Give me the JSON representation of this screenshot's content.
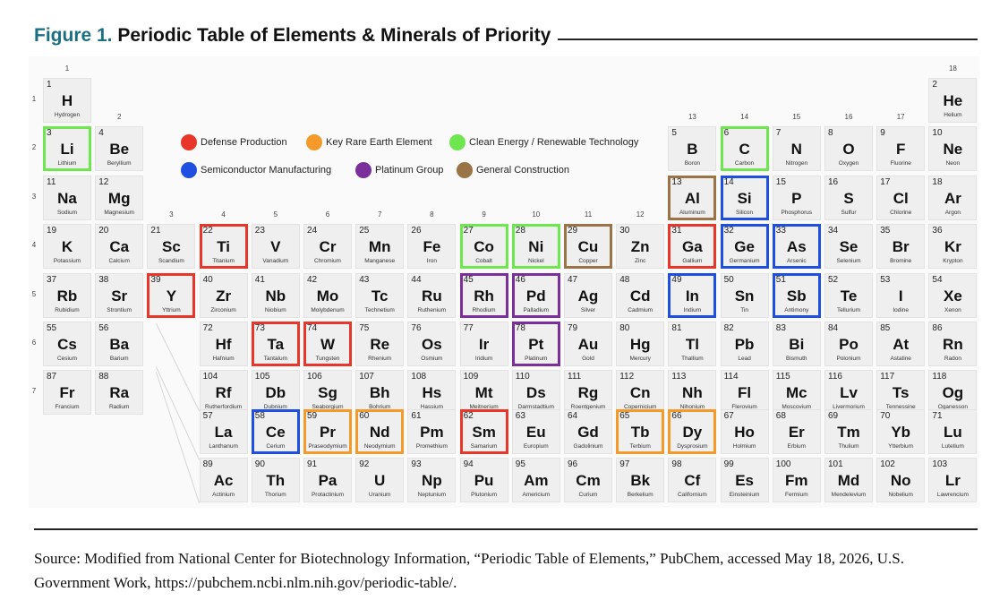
{
  "title": {
    "number": "Figure 1.",
    "text": " Periodic Table of Elements & Minerals of Priority"
  },
  "source": "Source: Modified from National Center for Biotechnology Information, “Periodic Table of Elements,” PubChem, accessed May 18, 2026, U.S. Government Work, https://pubchem.ncbi.nlm.nih.gov/periodic-table/.",
  "groups": [
    "1",
    "2",
    "3",
    "4",
    "5",
    "6",
    "7",
    "8",
    "9",
    "10",
    "11",
    "12",
    "13",
    "14",
    "15",
    "16",
    "17",
    "18"
  ],
  "periods": [
    "1",
    "2",
    "3",
    "4",
    "5",
    "6",
    "7"
  ],
  "legend": [
    {
      "key": "def",
      "label": "Defense Production",
      "color": "#e8372a"
    },
    {
      "key": "ree",
      "label": "Key Rare Earth Element",
      "color": "#f39a2a"
    },
    {
      "key": "clean",
      "label": "Clean Energy / Renewable Technology",
      "color": "#6ee64f"
    },
    {
      "key": "semi",
      "label": "Semiconductor Manufacturing",
      "color": "#1f4fe0"
    },
    {
      "key": "plat",
      "label": "Platinum Group",
      "color": "#7a2f9a"
    },
    {
      "key": "gen",
      "label": "General Construction",
      "color": "#9a7346"
    }
  ],
  "elements": [
    {
      "z": 1,
      "s": "H",
      "n": "Hydrogen",
      "g": 1,
      "p": 1
    },
    {
      "z": 2,
      "s": "He",
      "n": "Helium",
      "g": 18,
      "p": 1
    },
    {
      "z": 3,
      "s": "Li",
      "n": "Lithium",
      "g": 1,
      "p": 2,
      "hl": "clean"
    },
    {
      "z": 4,
      "s": "Be",
      "n": "Beryllium",
      "g": 2,
      "p": 2
    },
    {
      "z": 5,
      "s": "B",
      "n": "Boron",
      "g": 13,
      "p": 2
    },
    {
      "z": 6,
      "s": "C",
      "n": "Carbon",
      "g": 14,
      "p": 2,
      "hl": "clean"
    },
    {
      "z": 7,
      "s": "N",
      "n": "Nitrogen",
      "g": 15,
      "p": 2
    },
    {
      "z": 8,
      "s": "O",
      "n": "Oxygen",
      "g": 16,
      "p": 2
    },
    {
      "z": 9,
      "s": "F",
      "n": "Fluorine",
      "g": 17,
      "p": 2
    },
    {
      "z": 10,
      "s": "Ne",
      "n": "Neon",
      "g": 18,
      "p": 2
    },
    {
      "z": 11,
      "s": "Na",
      "n": "Sodium",
      "g": 1,
      "p": 3
    },
    {
      "z": 12,
      "s": "Mg",
      "n": "Magnesium",
      "g": 2,
      "p": 3
    },
    {
      "z": 13,
      "s": "Al",
      "n": "Aluminum",
      "g": 13,
      "p": 3,
      "hl": "gen"
    },
    {
      "z": 14,
      "s": "Si",
      "n": "Silicon",
      "g": 14,
      "p": 3,
      "hl": "semi"
    },
    {
      "z": 15,
      "s": "P",
      "n": "Phosphorus",
      "g": 15,
      "p": 3
    },
    {
      "z": 16,
      "s": "S",
      "n": "Sulfur",
      "g": 16,
      "p": 3
    },
    {
      "z": 17,
      "s": "Cl",
      "n": "Chlorine",
      "g": 17,
      "p": 3
    },
    {
      "z": 18,
      "s": "Ar",
      "n": "Argon",
      "g": 18,
      "p": 3
    },
    {
      "z": 19,
      "s": "K",
      "n": "Potassium",
      "g": 1,
      "p": 4
    },
    {
      "z": 20,
      "s": "Ca",
      "n": "Calcium",
      "g": 2,
      "p": 4
    },
    {
      "z": 21,
      "s": "Sc",
      "n": "Scandium",
      "g": 3,
      "p": 4
    },
    {
      "z": 22,
      "s": "Ti",
      "n": "Titanium",
      "g": 4,
      "p": 4,
      "hl": "def"
    },
    {
      "z": 23,
      "s": "V",
      "n": "Vanadium",
      "g": 5,
      "p": 4
    },
    {
      "z": 24,
      "s": "Cr",
      "n": "Chromium",
      "g": 6,
      "p": 4
    },
    {
      "z": 25,
      "s": "Mn",
      "n": "Manganese",
      "g": 7,
      "p": 4
    },
    {
      "z": 26,
      "s": "Fe",
      "n": "Iron",
      "g": 8,
      "p": 4
    },
    {
      "z": 27,
      "s": "Co",
      "n": "Cobalt",
      "g": 9,
      "p": 4,
      "hl": "clean"
    },
    {
      "z": 28,
      "s": "Ni",
      "n": "Nickel",
      "g": 10,
      "p": 4,
      "hl": "clean"
    },
    {
      "z": 29,
      "s": "Cu",
      "n": "Copper",
      "g": 11,
      "p": 4,
      "hl": "gen"
    },
    {
      "z": 30,
      "s": "Zn",
      "n": "Zinc",
      "g": 12,
      "p": 4
    },
    {
      "z": 31,
      "s": "Ga",
      "n": "Gallium",
      "g": 13,
      "p": 4,
      "hl": "def"
    },
    {
      "z": 32,
      "s": "Ge",
      "n": "Germanium",
      "g": 14,
      "p": 4,
      "hl": "semi"
    },
    {
      "z": 33,
      "s": "As",
      "n": "Arsenic",
      "g": 15,
      "p": 4,
      "hl": "semi"
    },
    {
      "z": 34,
      "s": "Se",
      "n": "Selenium",
      "g": 16,
      "p": 4
    },
    {
      "z": 35,
      "s": "Br",
      "n": "Bromine",
      "g": 17,
      "p": 4
    },
    {
      "z": 36,
      "s": "Kr",
      "n": "Krypton",
      "g": 18,
      "p": 4
    },
    {
      "z": 37,
      "s": "Rb",
      "n": "Rubidium",
      "g": 1,
      "p": 5
    },
    {
      "z": 38,
      "s": "Sr",
      "n": "Strontium",
      "g": 2,
      "p": 5
    },
    {
      "z": 39,
      "s": "Y",
      "n": "Yttrium",
      "g": 3,
      "p": 5,
      "hl": "def"
    },
    {
      "z": 40,
      "s": "Zr",
      "n": "Zirconium",
      "g": 4,
      "p": 5
    },
    {
      "z": 41,
      "s": "Nb",
      "n": "Niobium",
      "g": 5,
      "p": 5
    },
    {
      "z": 42,
      "s": "Mo",
      "n": "Molybdenum",
      "g": 6,
      "p": 5
    },
    {
      "z": 43,
      "s": "Tc",
      "n": "Technetium",
      "g": 7,
      "p": 5
    },
    {
      "z": 44,
      "s": "Ru",
      "n": "Ruthenium",
      "g": 8,
      "p": 5
    },
    {
      "z": 45,
      "s": "Rh",
      "n": "Rhodium",
      "g": 9,
      "p": 5,
      "hl": "plat"
    },
    {
      "z": 46,
      "s": "Pd",
      "n": "Palladium",
      "g": 10,
      "p": 5,
      "hl": "plat"
    },
    {
      "z": 47,
      "s": "Ag",
      "n": "Silver",
      "g": 11,
      "p": 5
    },
    {
      "z": 48,
      "s": "Cd",
      "n": "Cadmium",
      "g": 12,
      "p": 5
    },
    {
      "z": 49,
      "s": "In",
      "n": "Indium",
      "g": 13,
      "p": 5,
      "hl": "semi"
    },
    {
      "z": 50,
      "s": "Sn",
      "n": "Tin",
      "g": 14,
      "p": 5
    },
    {
      "z": 51,
      "s": "Sb",
      "n": "Antimony",
      "g": 15,
      "p": 5,
      "hl": "semi"
    },
    {
      "z": 52,
      "s": "Te",
      "n": "Tellurium",
      "g": 16,
      "p": 5
    },
    {
      "z": 53,
      "s": "I",
      "n": "Iodine",
      "g": 17,
      "p": 5
    },
    {
      "z": 54,
      "s": "Xe",
      "n": "Xenon",
      "g": 18,
      "p": 5
    },
    {
      "z": 55,
      "s": "Cs",
      "n": "Cesium",
      "g": 1,
      "p": 6
    },
    {
      "z": 56,
      "s": "Ba",
      "n": "Barium",
      "g": 2,
      "p": 6
    },
    {
      "z": 72,
      "s": "Hf",
      "n": "Hafnium",
      "g": 4,
      "p": 6
    },
    {
      "z": 73,
      "s": "Ta",
      "n": "Tantalum",
      "g": 5,
      "p": 6,
      "hl": "def"
    },
    {
      "z": 74,
      "s": "W",
      "n": "Tungsten",
      "g": 6,
      "p": 6,
      "hl": "def"
    },
    {
      "z": 75,
      "s": "Re",
      "n": "Rhenium",
      "g": 7,
      "p": 6
    },
    {
      "z": 76,
      "s": "Os",
      "n": "Osmium",
      "g": 8,
      "p": 6
    },
    {
      "z": 77,
      "s": "Ir",
      "n": "Iridium",
      "g": 9,
      "p": 6
    },
    {
      "z": 78,
      "s": "Pt",
      "n": "Platinum",
      "g": 10,
      "p": 6,
      "hl": "plat"
    },
    {
      "z": 79,
      "s": "Au",
      "n": "Gold",
      "g": 11,
      "p": 6
    },
    {
      "z": 80,
      "s": "Hg",
      "n": "Mercury",
      "g": 12,
      "p": 6
    },
    {
      "z": 81,
      "s": "Tl",
      "n": "Thallium",
      "g": 13,
      "p": 6
    },
    {
      "z": 82,
      "s": "Pb",
      "n": "Lead",
      "g": 14,
      "p": 6
    },
    {
      "z": 83,
      "s": "Bi",
      "n": "Bismuth",
      "g": 15,
      "p": 6
    },
    {
      "z": 84,
      "s": "Po",
      "n": "Polonium",
      "g": 16,
      "p": 6
    },
    {
      "z": 85,
      "s": "At",
      "n": "Astatine",
      "g": 17,
      "p": 6
    },
    {
      "z": 86,
      "s": "Rn",
      "n": "Radon",
      "g": 18,
      "p": 6
    },
    {
      "z": 87,
      "s": "Fr",
      "n": "Francium",
      "g": 1,
      "p": 7
    },
    {
      "z": 88,
      "s": "Ra",
      "n": "Radium",
      "g": 2,
      "p": 7
    },
    {
      "z": 104,
      "s": "Rf",
      "n": "Rutherfordium",
      "g": 4,
      "p": 7
    },
    {
      "z": 105,
      "s": "Db",
      "n": "Dubnium",
      "g": 5,
      "p": 7
    },
    {
      "z": 106,
      "s": "Sg",
      "n": "Seaborgium",
      "g": 6,
      "p": 7
    },
    {
      "z": 107,
      "s": "Bh",
      "n": "Bohrium",
      "g": 7,
      "p": 7
    },
    {
      "z": 108,
      "s": "Hs",
      "n": "Hassium",
      "g": 8,
      "p": 7
    },
    {
      "z": 109,
      "s": "Mt",
      "n": "Meitnerium",
      "g": 9,
      "p": 7
    },
    {
      "z": 110,
      "s": "Ds",
      "n": "Darmstadtium",
      "g": 10,
      "p": 7
    },
    {
      "z": 111,
      "s": "Rg",
      "n": "Roentgenium",
      "g": 11,
      "p": 7
    },
    {
      "z": 112,
      "s": "Cn",
      "n": "Copernicium",
      "g": 12,
      "p": 7
    },
    {
      "z": 113,
      "s": "Nh",
      "n": "Nihonium",
      "g": 13,
      "p": 7
    },
    {
      "z": 114,
      "s": "Fl",
      "n": "Flerovium",
      "g": 14,
      "p": 7
    },
    {
      "z": 115,
      "s": "Mc",
      "n": "Moscovium",
      "g": 15,
      "p": 7
    },
    {
      "z": 116,
      "s": "Lv",
      "n": "Livermorium",
      "g": 16,
      "p": 7
    },
    {
      "z": 117,
      "s": "Ts",
      "n": "Tennessine",
      "g": 17,
      "p": 7
    },
    {
      "z": 118,
      "s": "Og",
      "n": "Oganesson",
      "g": 18,
      "p": 7
    },
    {
      "z": 57,
      "s": "La",
      "n": "Lanthanum",
      "g": 4,
      "p": 8
    },
    {
      "z": 58,
      "s": "Ce",
      "n": "Cerium",
      "g": 5,
      "p": 8,
      "hl": "semi"
    },
    {
      "z": 59,
      "s": "Pr",
      "n": "Praseodymium",
      "g": 6,
      "p": 8,
      "hl": "ree"
    },
    {
      "z": 60,
      "s": "Nd",
      "n": "Neodymium",
      "g": 7,
      "p": 8,
      "hl": "ree"
    },
    {
      "z": 61,
      "s": "Pm",
      "n": "Promethium",
      "g": 8,
      "p": 8
    },
    {
      "z": 62,
      "s": "Sm",
      "n": "Samarium",
      "g": 9,
      "p": 8,
      "hl": "def"
    },
    {
      "z": 63,
      "s": "Eu",
      "n": "Europium",
      "g": 10,
      "p": 8
    },
    {
      "z": 64,
      "s": "Gd",
      "n": "Gadolinium",
      "g": 11,
      "p": 8
    },
    {
      "z": 65,
      "s": "Tb",
      "n": "Terbium",
      "g": 12,
      "p": 8,
      "hl": "ree"
    },
    {
      "z": 66,
      "s": "Dy",
      "n": "Dysprosium",
      "g": 13,
      "p": 8,
      "hl": "ree"
    },
    {
      "z": 67,
      "s": "Ho",
      "n": "Holmium",
      "g": 14,
      "p": 8
    },
    {
      "z": 68,
      "s": "Er",
      "n": "Erbium",
      "g": 15,
      "p": 8
    },
    {
      "z": 69,
      "s": "Tm",
      "n": "Thulium",
      "g": 16,
      "p": 8
    },
    {
      "z": 70,
      "s": "Yb",
      "n": "Ytterbium",
      "g": 17,
      "p": 8
    },
    {
      "z": 71,
      "s": "Lu",
      "n": "Lutetium",
      "g": 18,
      "p": 8
    },
    {
      "z": 89,
      "s": "Ac",
      "n": "Actinium",
      "g": 4,
      "p": 9
    },
    {
      "z": 90,
      "s": "Th",
      "n": "Thorium",
      "g": 5,
      "p": 9
    },
    {
      "z": 91,
      "s": "Pa",
      "n": "Protactinium",
      "g": 6,
      "p": 9
    },
    {
      "z": 92,
      "s": "U",
      "n": "Uranium",
      "g": 7,
      "p": 9
    },
    {
      "z": 93,
      "s": "Np",
      "n": "Neptunium",
      "g": 8,
      "p": 9
    },
    {
      "z": 94,
      "s": "Pu",
      "n": "Plutonium",
      "g": 9,
      "p": 9
    },
    {
      "z": 95,
      "s": "Am",
      "n": "Americium",
      "g": 10,
      "p": 9
    },
    {
      "z": 96,
      "s": "Cm",
      "n": "Curium",
      "g": 11,
      "p": 9
    },
    {
      "z": 97,
      "s": "Bk",
      "n": "Berkelium",
      "g": 12,
      "p": 9
    },
    {
      "z": 98,
      "s": "Cf",
      "n": "Californium",
      "g": 13,
      "p": 9
    },
    {
      "z": 99,
      "s": "Es",
      "n": "Einsteinium",
      "g": 14,
      "p": 9
    },
    {
      "z": 100,
      "s": "Fm",
      "n": "Fermium",
      "g": 15,
      "p": 9
    },
    {
      "z": 101,
      "s": "Md",
      "n": "Mendelevium",
      "g": 16,
      "p": 9
    },
    {
      "z": 102,
      "s": "No",
      "n": "Nobelium",
      "g": 17,
      "p": 9
    },
    {
      "z": 103,
      "s": "Lr",
      "n": "Lawrencium",
      "g": 18,
      "p": 9
    }
  ]
}
